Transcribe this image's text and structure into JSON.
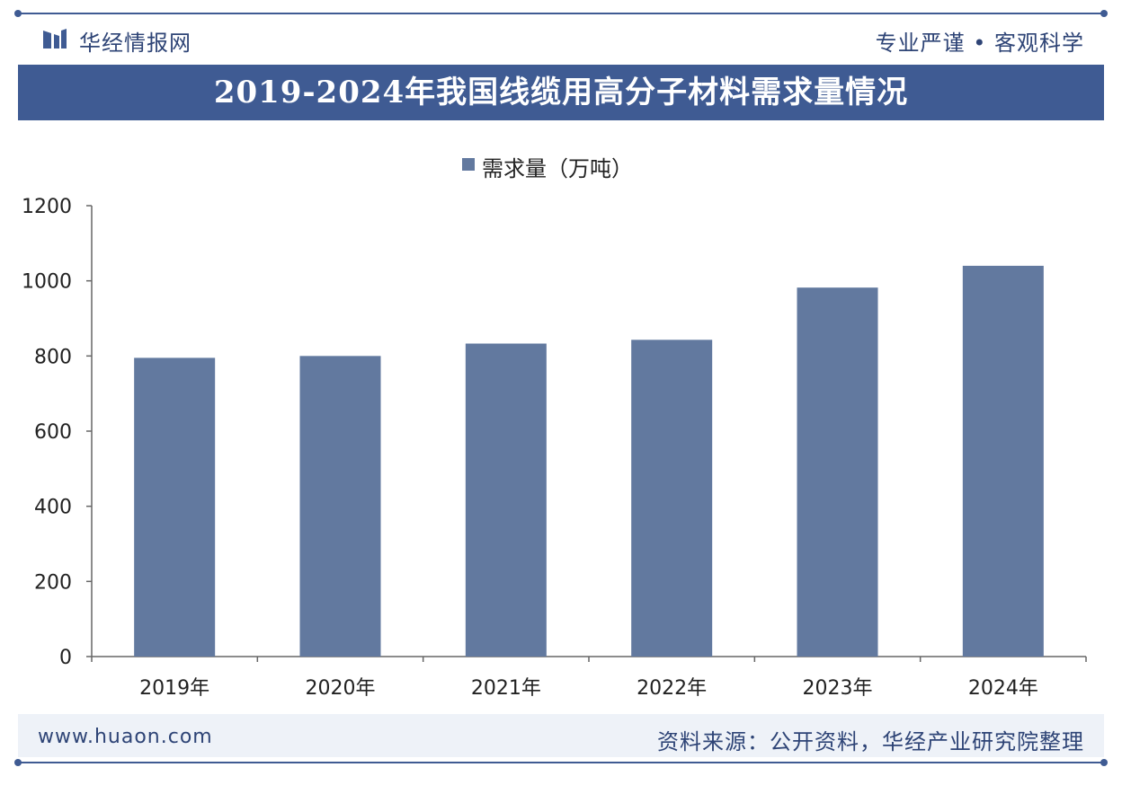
{
  "header": {
    "brand": "华经情报网",
    "slogan": "专业严谨 • 客观科学"
  },
  "footer": {
    "url": "www.huaon.com",
    "source": "资料来源：公开资料，华经产业研究院整理"
  },
  "colors": {
    "accent": "#3f5b93",
    "bar": "#62799f",
    "brand_text": "#2e4476"
  },
  "chart_data": {
    "type": "bar",
    "title": "2019-2024年我国线缆用高分子材料需求量情况",
    "categories": [
      "2019年",
      "2020年",
      "2021年",
      "2022年",
      "2023年",
      "2024年"
    ],
    "series": [
      {
        "name": "需求量（万吨）",
        "values": [
          795,
          800,
          833,
          843,
          982,
          1040
        ]
      }
    ],
    "xlabel": "",
    "ylabel": "",
    "ylim": [
      0,
      1200
    ],
    "yticks": [
      0,
      200,
      400,
      600,
      800,
      1000,
      1200
    ],
    "grid": false,
    "legend": "top-center"
  }
}
